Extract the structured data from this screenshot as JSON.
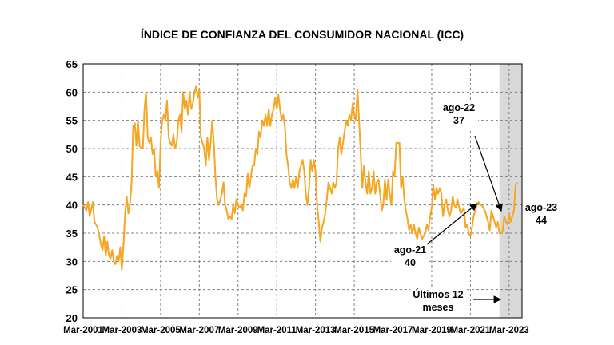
{
  "chart_data": {
    "type": "line",
    "title": "ÍNDICE DE CONFIANZA DEL CONSUMIDOR NACIONAL (ICC)",
    "xlabel": "",
    "ylabel": "",
    "ylim": [
      20,
      65
    ],
    "yticks": [
      20,
      25,
      30,
      35,
      40,
      45,
      50,
      55,
      60,
      65
    ],
    "xlim": [
      "2001-03",
      "2023-11"
    ],
    "xticks": [
      "Mar-2001",
      "Mar-2003",
      "Mar-2005",
      "Mar-2007",
      "Mar-2009",
      "Mar-2011",
      "Mar-2013",
      "Mar-2015",
      "Mar-2017",
      "Mar-2019",
      "Mar-2021",
      "Mar-2023"
    ],
    "grid": true,
    "line_color": "#F5A623",
    "shade_color": "#D9D9D9",
    "shaded_region": {
      "from": "2022-09",
      "to": "2023-11",
      "label": "Últimos 12 meses"
    },
    "series": [
      {
        "values": [
          [
            "2001-03",
            40
          ],
          [
            "2001-05",
            39
          ],
          [
            "2001-06",
            40.5
          ],
          [
            "2001-07",
            38
          ],
          [
            "2001-09",
            40.5
          ],
          [
            "2001-10",
            37
          ],
          [
            "2001-12",
            36
          ],
          [
            "2002-02",
            33
          ],
          [
            "2002-03",
            32
          ],
          [
            "2002-04",
            34.5
          ],
          [
            "2002-05",
            31
          ],
          [
            "2002-06",
            33.5
          ],
          [
            "2002-07",
            31
          ],
          [
            "2002-08",
            30.5
          ],
          [
            "2002-09",
            32
          ],
          [
            "2002-10",
            30
          ],
          [
            "2002-11",
            29.5
          ],
          [
            "2002-12",
            31
          ],
          [
            "2003-01",
            30
          ],
          [
            "2003-02",
            32.5
          ],
          [
            "2003-03",
            28.5
          ],
          [
            "2003-04",
            33
          ],
          [
            "2003-05",
            38.5
          ],
          [
            "2003-06",
            41.5
          ],
          [
            "2003-07",
            38.5
          ],
          [
            "2003-08",
            40
          ],
          [
            "2003-09",
            44
          ],
          [
            "2003-10",
            54
          ],
          [
            "2003-11",
            54.5
          ],
          [
            "2003-12",
            50.5
          ],
          [
            "2004-01",
            55
          ],
          [
            "2004-02",
            50.5
          ],
          [
            "2004-03",
            50
          ],
          [
            "2004-04",
            50
          ],
          [
            "2004-05",
            57
          ],
          [
            "2004-06",
            60
          ],
          [
            "2004-07",
            52
          ],
          [
            "2004-08",
            51
          ],
          [
            "2004-09",
            52
          ],
          [
            "2004-10",
            49
          ],
          [
            "2004-11",
            50
          ],
          [
            "2004-12",
            45
          ],
          [
            "2005-01",
            46
          ],
          [
            "2005-02",
            43
          ],
          [
            "2005-03",
            51
          ],
          [
            "2005-04",
            55
          ],
          [
            "2005-05",
            56
          ],
          [
            "2005-06",
            55
          ],
          [
            "2005-07",
            58.5
          ],
          [
            "2005-08",
            52
          ],
          [
            "2005-09",
            51
          ],
          [
            "2005-10",
            50.5
          ],
          [
            "2005-11",
            52.5
          ],
          [
            "2005-12",
            50
          ],
          [
            "2006-01",
            51
          ],
          [
            "2006-02",
            55
          ],
          [
            "2006-03",
            56
          ],
          [
            "2006-04",
            53
          ],
          [
            "2006-05",
            60
          ],
          [
            "2006-06",
            57
          ],
          [
            "2006-07",
            58.5
          ],
          [
            "2006-08",
            56
          ],
          [
            "2006-09",
            60
          ],
          [
            "2006-10",
            57
          ],
          [
            "2006-11",
            58
          ],
          [
            "2006-12",
            60
          ],
          [
            "2007-01",
            61
          ],
          [
            "2007-02",
            59
          ],
          [
            "2007-03",
            60.5
          ],
          [
            "2007-04",
            52
          ],
          [
            "2007-05",
            51
          ],
          [
            "2007-06",
            50
          ],
          [
            "2007-07",
            47
          ],
          [
            "2007-08",
            52
          ],
          [
            "2007-09",
            48
          ],
          [
            "2007-10",
            51
          ],
          [
            "2007-11",
            55
          ],
          [
            "2007-12",
            51
          ],
          [
            "2008-01",
            45
          ],
          [
            "2008-02",
            41
          ],
          [
            "2008-03",
            40
          ],
          [
            "2008-04",
            41
          ],
          [
            "2008-05",
            42
          ],
          [
            "2008-06",
            44
          ],
          [
            "2008-07",
            40
          ],
          [
            "2008-08",
            39
          ],
          [
            "2008-09",
            37.5
          ],
          [
            "2008-10",
            38
          ],
          [
            "2008-11",
            37.5
          ],
          [
            "2008-12",
            40
          ],
          [
            "2009-01",
            38.5
          ],
          [
            "2009-02",
            41
          ],
          [
            "2009-03",
            40
          ],
          [
            "2009-04",
            39.5
          ],
          [
            "2009-05",
            40
          ],
          [
            "2009-06",
            39
          ],
          [
            "2009-07",
            42
          ],
          [
            "2009-08",
            41.5
          ],
          [
            "2009-09",
            45.5
          ],
          [
            "2009-10",
            43
          ],
          [
            "2009-11",
            45
          ],
          [
            "2009-12",
            47
          ],
          [
            "2010-01",
            47
          ],
          [
            "2010-02",
            50
          ],
          [
            "2010-03",
            49
          ],
          [
            "2010-04",
            53
          ],
          [
            "2010-05",
            52
          ],
          [
            "2010-06",
            55
          ],
          [
            "2010-07",
            54
          ],
          [
            "2010-08",
            56
          ],
          [
            "2010-09",
            54
          ],
          [
            "2010-10",
            57
          ],
          [
            "2010-11",
            54
          ],
          [
            "2010-12",
            56
          ],
          [
            "2011-01",
            57
          ],
          [
            "2011-02",
            59
          ],
          [
            "2011-03",
            57
          ],
          [
            "2011-04",
            59.5
          ],
          [
            "2011-05",
            57
          ],
          [
            "2011-06",
            55
          ],
          [
            "2011-07",
            56
          ],
          [
            "2011-08",
            54
          ],
          [
            "2011-09",
            49
          ],
          [
            "2011-10",
            47
          ],
          [
            "2011-11",
            44
          ],
          [
            "2011-12",
            43
          ],
          [
            "2012-01",
            44.5
          ],
          [
            "2012-02",
            43
          ],
          [
            "2012-03",
            45
          ],
          [
            "2012-04",
            43
          ],
          [
            "2012-05",
            46
          ],
          [
            "2012-06",
            47
          ],
          [
            "2012-07",
            48
          ],
          [
            "2012-08",
            46
          ],
          [
            "2012-09",
            42
          ],
          [
            "2012-10",
            40
          ],
          [
            "2012-11",
            43
          ],
          [
            "2012-12",
            48
          ],
          [
            "2013-01",
            46
          ],
          [
            "2013-02",
            48
          ],
          [
            "2013-03",
            46
          ],
          [
            "2013-04",
            40
          ],
          [
            "2013-05",
            37
          ],
          [
            "2013-06",
            33.5
          ],
          [
            "2013-07",
            36
          ],
          [
            "2013-08",
            37
          ],
          [
            "2013-09",
            38.5
          ],
          [
            "2013-10",
            41
          ],
          [
            "2013-11",
            44
          ],
          [
            "2013-12",
            43
          ],
          [
            "2014-01",
            42
          ],
          [
            "2014-02",
            44
          ],
          [
            "2014-03",
            43
          ],
          [
            "2014-04",
            44
          ],
          [
            "2014-05",
            50
          ],
          [
            "2014-06",
            52
          ],
          [
            "2014-07",
            49
          ],
          [
            "2014-08",
            51
          ],
          [
            "2014-09",
            53
          ],
          [
            "2014-10",
            55
          ],
          [
            "2014-11",
            54
          ],
          [
            "2014-12",
            56
          ],
          [
            "2015-01",
            55
          ],
          [
            "2015-02",
            58
          ],
          [
            "2015-03",
            56
          ],
          [
            "2015-04",
            55
          ],
          [
            "2015-05",
            60.5
          ],
          [
            "2015-06",
            55
          ],
          [
            "2015-07",
            49
          ],
          [
            "2015-08",
            43
          ],
          [
            "2015-09",
            47
          ],
          [
            "2015-10",
            44
          ],
          [
            "2015-11",
            42
          ],
          [
            "2015-12",
            46
          ],
          [
            "2016-01",
            42
          ],
          [
            "2016-02",
            43
          ],
          [
            "2016-03",
            46
          ],
          [
            "2016-04",
            42
          ],
          [
            "2016-05",
            44
          ],
          [
            "2016-06",
            44.5
          ],
          [
            "2016-07",
            42
          ],
          [
            "2016-08",
            39
          ],
          [
            "2016-09",
            40
          ],
          [
            "2016-10",
            44.5
          ],
          [
            "2016-11",
            41
          ],
          [
            "2016-12",
            44.5
          ],
          [
            "2017-01",
            42
          ],
          [
            "2017-02",
            40
          ],
          [
            "2017-03",
            46
          ],
          [
            "2017-04",
            45
          ],
          [
            "2017-05",
            51
          ],
          [
            "2017-06",
            51
          ],
          [
            "2017-07",
            51
          ],
          [
            "2017-08",
            43
          ],
          [
            "2017-09",
            45
          ],
          [
            "2017-10",
            41
          ],
          [
            "2017-11",
            39
          ],
          [
            "2017-12",
            37.5
          ],
          [
            "2018-01",
            35.5
          ],
          [
            "2018-02",
            36.5
          ],
          [
            "2018-03",
            35
          ],
          [
            "2018-04",
            36.5
          ],
          [
            "2018-05",
            35
          ],
          [
            "2018-06",
            34
          ],
          [
            "2018-07",
            36
          ],
          [
            "2018-08",
            35
          ],
          [
            "2018-09",
            34
          ],
          [
            "2018-10",
            34.5
          ],
          [
            "2018-11",
            35
          ],
          [
            "2018-12",
            36.5
          ],
          [
            "2019-01",
            35.5
          ],
          [
            "2019-02",
            38
          ],
          [
            "2019-03",
            39.5
          ],
          [
            "2019-04",
            43.5
          ],
          [
            "2019-05",
            41
          ],
          [
            "2019-06",
            43
          ],
          [
            "2019-07",
            42
          ],
          [
            "2019-08",
            43
          ],
          [
            "2019-09",
            42
          ],
          [
            "2019-10",
            38
          ],
          [
            "2019-11",
            40
          ],
          [
            "2019-12",
            41
          ],
          [
            "2020-01",
            39
          ],
          [
            "2020-02",
            38
          ],
          [
            "2020-03",
            39
          ],
          [
            "2020-04",
            41.5
          ],
          [
            "2020-05",
            40
          ],
          [
            "2020-06",
            39.5
          ],
          [
            "2020-07",
            41
          ],
          [
            "2020-08",
            39.5
          ],
          [
            "2020-09",
            38.5
          ],
          [
            "2020-10",
            39
          ],
          [
            "2020-11",
            39.5
          ],
          [
            "2020-12",
            36
          ],
          [
            "2021-01",
            36.5
          ],
          [
            "2021-02",
            35
          ],
          [
            "2021-03",
            34.5
          ],
          [
            "2021-04",
            36
          ],
          [
            "2021-05",
            38
          ],
          [
            "2021-06",
            39
          ],
          [
            "2021-07",
            40
          ],
          [
            "2021-08",
            40.5
          ],
          [
            "2021-09",
            40
          ],
          [
            "2021-10",
            40
          ],
          [
            "2021-11",
            39.5
          ],
          [
            "2021-12",
            39
          ],
          [
            "2022-01",
            38
          ],
          [
            "2022-02",
            37
          ],
          [
            "2022-03",
            35.5
          ],
          [
            "2022-04",
            39
          ],
          [
            "2022-05",
            38
          ],
          [
            "2022-06",
            37
          ],
          [
            "2022-07",
            36
          ],
          [
            "2022-08",
            37
          ],
          [
            "2022-09",
            35
          ],
          [
            "2022-10",
            35
          ],
          [
            "2022-11",
            35.5
          ],
          [
            "2022-12",
            38
          ],
          [
            "2023-01",
            37
          ],
          [
            "2023-02",
            36.5
          ],
          [
            "2023-03",
            38.5
          ],
          [
            "2023-04",
            37
          ],
          [
            "2023-05",
            38
          ],
          [
            "2023-06",
            39
          ],
          [
            "2023-07",
            43.5
          ],
          [
            "2023-08",
            44
          ]
        ]
      }
    ],
    "annotations": [
      {
        "lines": [
          "ago-22",
          "37"
        ],
        "points_to": "2022-08"
      },
      {
        "lines": [
          "ago-21",
          "40"
        ],
        "points_to": "2021-08"
      },
      {
        "lines": [
          "ago-23",
          "44"
        ],
        "points_to": "2023-08"
      },
      {
        "lines": [
          "Últimos 12",
          "meses"
        ],
        "points_to": "shaded_region"
      }
    ]
  }
}
